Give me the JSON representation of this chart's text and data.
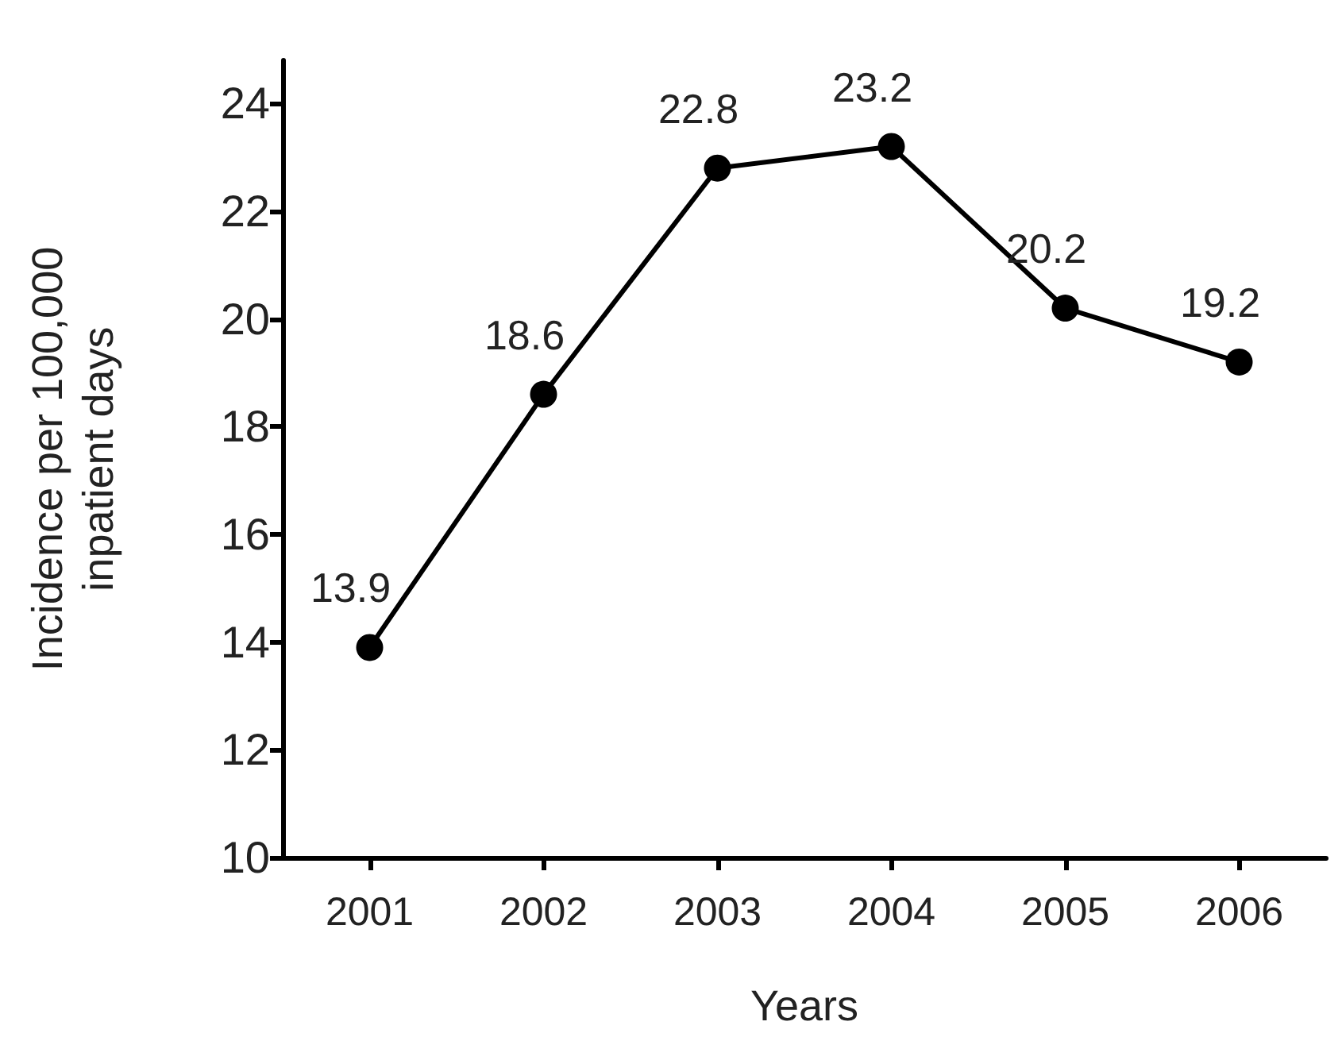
{
  "chart_data": {
    "type": "line",
    "xlabel": "Years",
    "ylabel": "Incidence per 100,000\ninpatient days",
    "categories": [
      "2001",
      "2002",
      "2003",
      "2004",
      "2005",
      "2006"
    ],
    "series": [
      {
        "color": "#000000",
        "values": [
          13.9,
          18.6,
          22.8,
          23.2,
          20.2,
          19.2
        ]
      }
    ],
    "ylim": [
      10,
      24.8
    ],
    "yticks": [
      10,
      12,
      14,
      16,
      18,
      20,
      22,
      24
    ],
    "data_labels": true,
    "marker": "circle",
    "line_style": "solid"
  }
}
